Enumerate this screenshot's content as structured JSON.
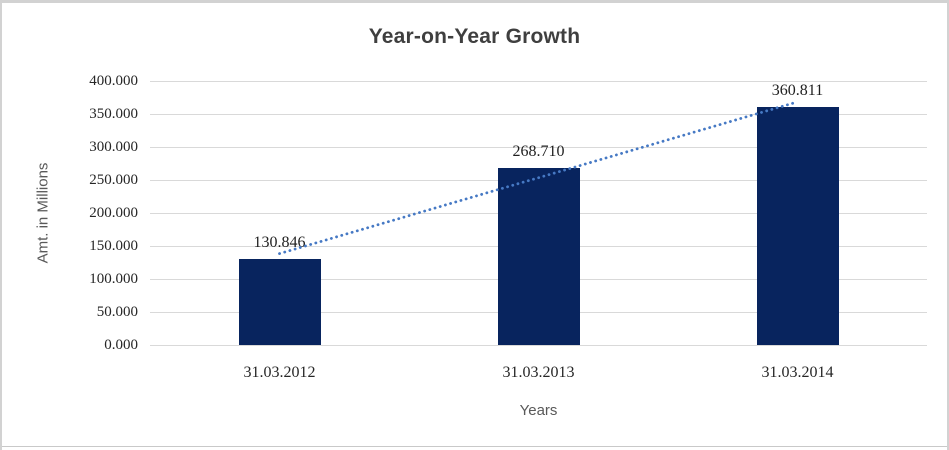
{
  "chart_data": {
    "type": "bar",
    "title": "Year-on-Year Growth",
    "xlabel": "Years",
    "ylabel": "Amt. in Millions",
    "categories": [
      "31.03.2012",
      "31.03.2013",
      "31.03.2014"
    ],
    "values": [
      130.846,
      268.71,
      360.811
    ],
    "data_labels": [
      "130.846",
      "268.710",
      "360.811"
    ],
    "ylim": [
      0,
      400
    ],
    "ytick_labels": [
      "400.000",
      "350.000",
      "300.000",
      "250.000",
      "200.000",
      "150.000",
      "100.000",
      "50.000",
      "0.000"
    ],
    "grid": "horizontal",
    "legend": "none",
    "bar_color": "#08245e",
    "gridline_color": "#d9d9d9",
    "trendline": {
      "style": "dotted",
      "color": "#4679c4",
      "start_value": 138.5,
      "end_value": 368.4
    }
  }
}
